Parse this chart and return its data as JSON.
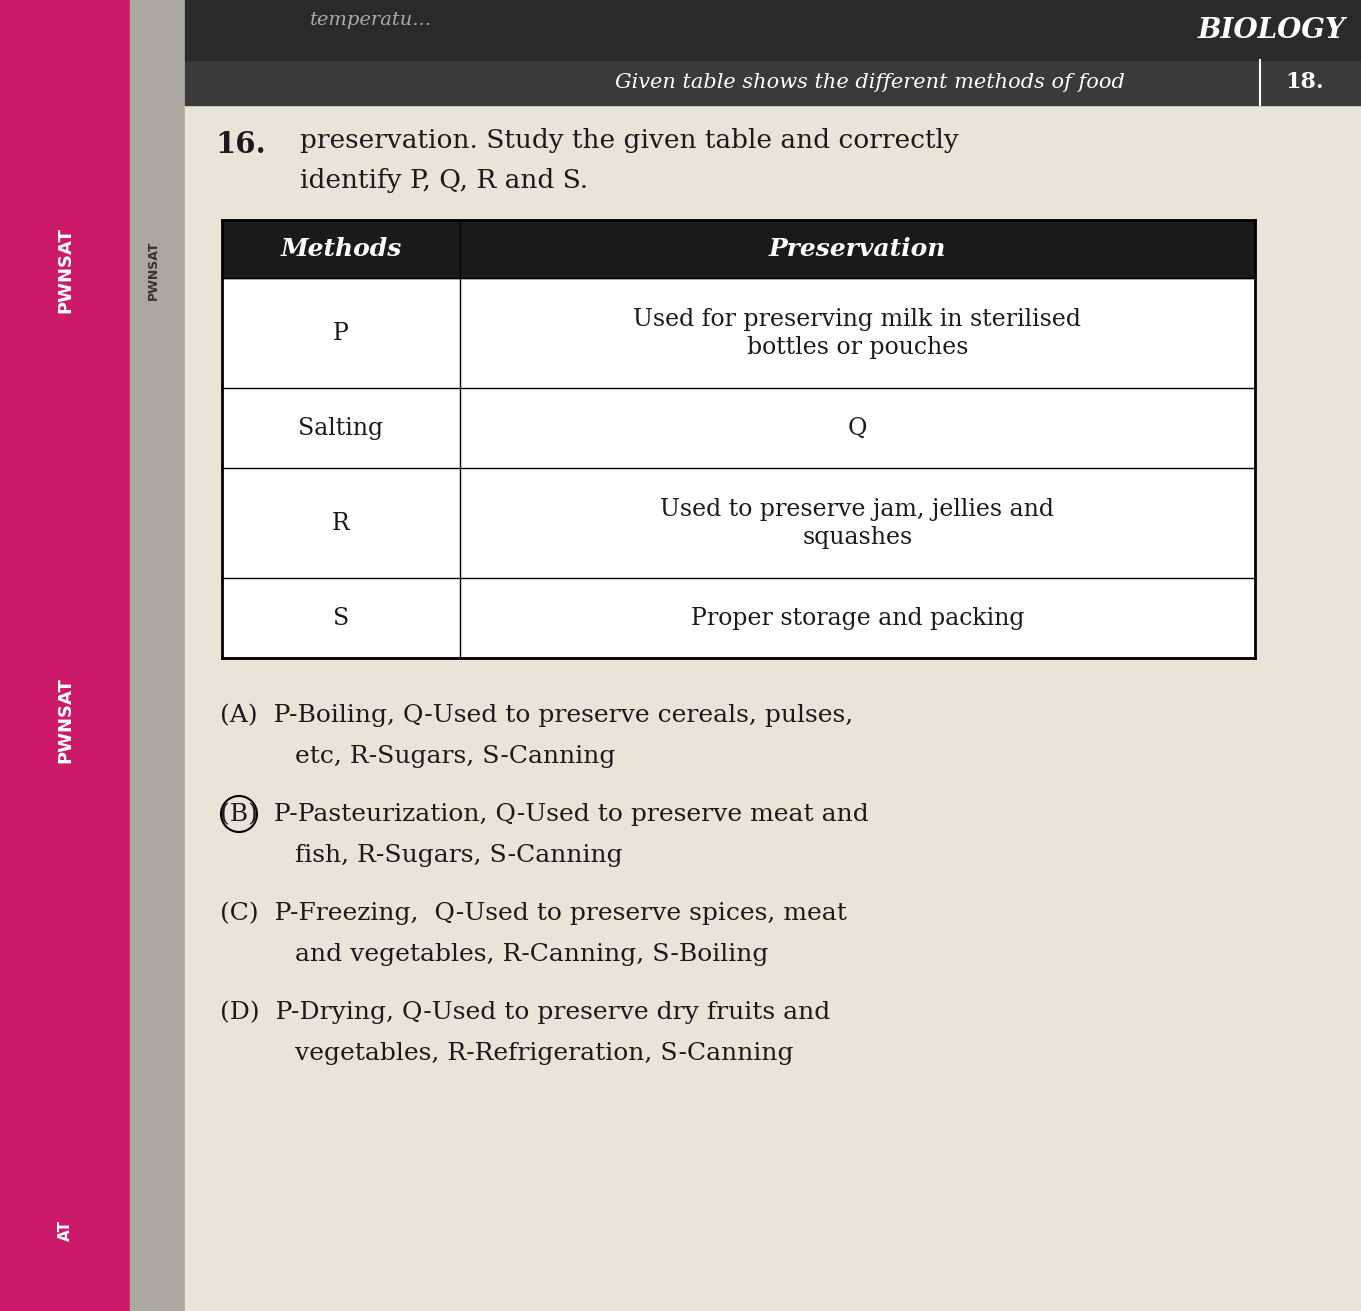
{
  "question_number": "16.",
  "question_line1": "Given table shows the different methods of food",
  "question_line2": "preservation. Study the given table and correctly",
  "question_line3": "identify P, Q, R and S.",
  "header_right_text": "BIOLOGY",
  "header_right_num": "18.",
  "top_partial_text": "temperatu...",
  "table_headers": [
    "Methods",
    "Preservation"
  ],
  "table_rows": [
    [
      "P",
      "Used for preserving milk in sterilised\nbottles or pouches"
    ],
    [
      "Salting",
      "Q"
    ],
    [
      "R",
      "Used to preserve jam, jellies and\nsquashes"
    ],
    [
      "S",
      "Proper storage and packing"
    ]
  ],
  "option_A_line1": "(A)  P-Boiling, Q-Used to preserve cereals, pulses,",
  "option_A_line2": "       etc, R-Sugars, S-Canning",
  "option_B_line1": "(B)  P-Pasteurization, Q-Used to preserve meat and",
  "option_B_line2": "       fish, R-Sugars, S-Canning",
  "option_C_line1": "(C)  P-Freezing,  Q-Used to preserve spices, meat",
  "option_C_line2": "       and vegetables, R-Canning, S-Boiling",
  "option_D_line1": "(D)  P-Drying, Q-Used to preserve dry fruits and",
  "option_D_line2": "       vegetables, R-Refrigeration, S-Canning",
  "bg_color": "#d8d4c8",
  "content_bg": "#e8e4d8",
  "header_bg": "#2a2a2a",
  "header_text_color": "#ffffff",
  "text_color": "#1a1a1a",
  "table_header_bg": "#1a1a1a",
  "sidebar_pink": "#cc1a6a",
  "sidebar_grey": "#aaa89e",
  "font_size_question": 19,
  "font_size_table_header": 18,
  "font_size_table": 17,
  "font_size_options": 18
}
